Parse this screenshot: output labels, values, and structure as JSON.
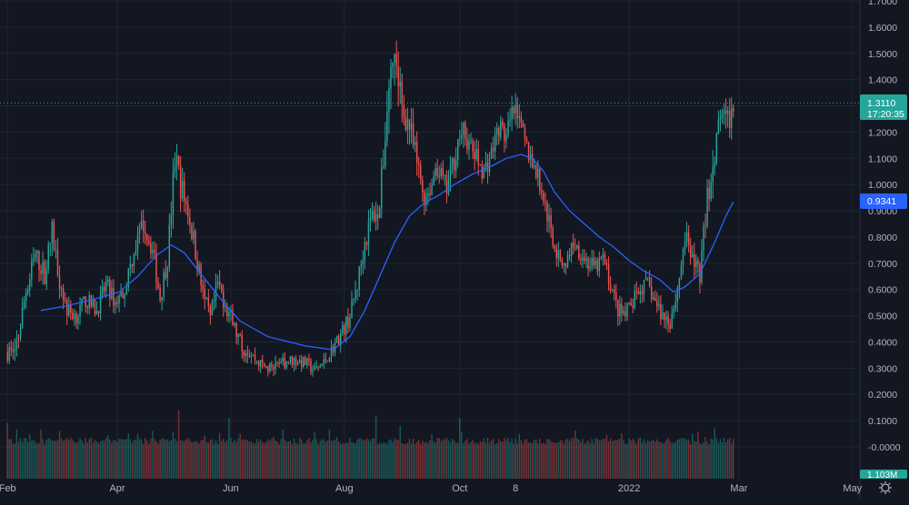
{
  "chart_data": {
    "type": "candlestick",
    "grid": true,
    "colors": {
      "background": "#131722",
      "grid": "#1f2532",
      "axis_text": "#b2b5be",
      "up": "#26a69a",
      "down": "#ef5350",
      "ma_line": "#2962ff",
      "price_label_bg": "#26a69a",
      "ma_label_bg": "#2962ff",
      "volume_label_bg": "#26a69a",
      "crosshair": "#26a69a"
    },
    "y_axis": {
      "ticks": [
        "1.7000",
        "1.6000",
        "1.5000",
        "1.4000",
        "1.3000",
        "1.2000",
        "1.1000",
        "1.0000",
        "0.9000",
        "0.8000",
        "0.7000",
        "0.6000",
        "0.5000",
        "0.4000",
        "0.3000",
        "0.2000",
        "0.1000",
        "-0.0000"
      ],
      "tick_values": [
        1.7,
        1.6,
        1.5,
        1.4,
        1.3,
        1.2,
        1.1,
        1.0,
        0.9,
        0.8,
        0.7,
        0.6,
        0.5,
        0.4,
        0.3,
        0.2,
        0.1,
        0.0
      ],
      "range": [
        0.0,
        1.7
      ]
    },
    "x_axis": {
      "ticks": [
        "Feb",
        "Apr",
        "Jun",
        "Aug",
        "Oct",
        "8",
        "2022",
        "Mar",
        "May"
      ],
      "tick_days": [
        0,
        59,
        120,
        181,
        243,
        273,
        334,
        393,
        454
      ],
      "range_days": [
        -4,
        458
      ]
    },
    "price_label": {
      "price": "1.3110",
      "countdown": "17:20:35",
      "value": 1.311
    },
    "ma_label": {
      "price": "0.9341",
      "value": 0.9341
    },
    "volume_label": {
      "text": "1.103M"
    },
    "series_anchors": [
      [
        0,
        0.36,
        0.04
      ],
      [
        5,
        0.38,
        0.05
      ],
      [
        10,
        0.6,
        0.05
      ],
      [
        15,
        0.73,
        0.05
      ],
      [
        20,
        0.66,
        0.05
      ],
      [
        24,
        0.82,
        0.06
      ],
      [
        28,
        0.64,
        0.05
      ],
      [
        32,
        0.52,
        0.04
      ],
      [
        37,
        0.5,
        0.04
      ],
      [
        42,
        0.56,
        0.04
      ],
      [
        48,
        0.52,
        0.04
      ],
      [
        53,
        0.62,
        0.04
      ],
      [
        58,
        0.55,
        0.04
      ],
      [
        63,
        0.6,
        0.04
      ],
      [
        68,
        0.75,
        0.05
      ],
      [
        73,
        0.85,
        0.05
      ],
      [
        78,
        0.75,
        0.05
      ],
      [
        82,
        0.57,
        0.05
      ],
      [
        86,
        0.72,
        0.05
      ],
      [
        90,
        1.1,
        0.08
      ],
      [
        93,
        1.0,
        0.07
      ],
      [
        97,
        0.9,
        0.06
      ],
      [
        101,
        0.75,
        0.06
      ],
      [
        105,
        0.58,
        0.05
      ],
      [
        109,
        0.48,
        0.05
      ],
      [
        113,
        0.62,
        0.05
      ],
      [
        117,
        0.55,
        0.05
      ],
      [
        122,
        0.45,
        0.04
      ],
      [
        126,
        0.38,
        0.04
      ],
      [
        130,
        0.36,
        0.03
      ],
      [
        135,
        0.32,
        0.03
      ],
      [
        140,
        0.3,
        0.03
      ],
      [
        145,
        0.3,
        0.03
      ],
      [
        150,
        0.33,
        0.03
      ],
      [
        155,
        0.33,
        0.03
      ],
      [
        160,
        0.32,
        0.03
      ],
      [
        165,
        0.29,
        0.03
      ],
      [
        170,
        0.32,
        0.03
      ],
      [
        175,
        0.38,
        0.03
      ],
      [
        180,
        0.44,
        0.04
      ],
      [
        184,
        0.5,
        0.04
      ],
      [
        188,
        0.62,
        0.05
      ],
      [
        192,
        0.78,
        0.05
      ],
      [
        196,
        0.88,
        0.06
      ],
      [
        200,
        0.92,
        0.06
      ],
      [
        205,
        1.38,
        0.1
      ],
      [
        208,
        1.5,
        0.1
      ],
      [
        212,
        1.3,
        0.08
      ],
      [
        216,
        1.22,
        0.07
      ],
      [
        220,
        1.08,
        0.06
      ],
      [
        224,
        0.95,
        0.05
      ],
      [
        228,
        1.0,
        0.05
      ],
      [
        232,
        1.05,
        0.05
      ],
      [
        236,
        0.98,
        0.05
      ],
      [
        240,
        1.1,
        0.06
      ],
      [
        244,
        1.22,
        0.06
      ],
      [
        248,
        1.15,
        0.05
      ],
      [
        252,
        1.1,
        0.05
      ],
      [
        256,
        1.05,
        0.05
      ],
      [
        260,
        1.12,
        0.05
      ],
      [
        264,
        1.22,
        0.05
      ],
      [
        268,
        1.18,
        0.05
      ],
      [
        272,
        1.28,
        0.06
      ],
      [
        276,
        1.2,
        0.05
      ],
      [
        280,
        1.12,
        0.05
      ],
      [
        284,
        1.05,
        0.05
      ],
      [
        288,
        0.95,
        0.05
      ],
      [
        292,
        0.82,
        0.05
      ],
      [
        296,
        0.72,
        0.04
      ],
      [
        300,
        0.7,
        0.04
      ],
      [
        304,
        0.78,
        0.04
      ],
      [
        308,
        0.74,
        0.04
      ],
      [
        312,
        0.7,
        0.04
      ],
      [
        316,
        0.68,
        0.04
      ],
      [
        320,
        0.72,
        0.04
      ],
      [
        324,
        0.62,
        0.04
      ],
      [
        328,
        0.52,
        0.04
      ],
      [
        332,
        0.5,
        0.04
      ],
      [
        336,
        0.55,
        0.04
      ],
      [
        340,
        0.6,
        0.04
      ],
      [
        344,
        0.62,
        0.04
      ],
      [
        348,
        0.55,
        0.04
      ],
      [
        352,
        0.5,
        0.04
      ],
      [
        356,
        0.48,
        0.04
      ],
      [
        360,
        0.6,
        0.05
      ],
      [
        364,
        0.8,
        0.05
      ],
      [
        368,
        0.72,
        0.05
      ],
      [
        372,
        0.66,
        0.05
      ],
      [
        376,
        0.95,
        0.07
      ],
      [
        380,
        1.1,
        0.08
      ],
      [
        383,
        1.28,
        0.08
      ],
      [
        386,
        1.22,
        0.07
      ],
      [
        390,
        1.3,
        0.06
      ]
    ],
    "ma_points": [
      [
        18,
        0.52
      ],
      [
        30,
        0.535
      ],
      [
        45,
        0.56
      ],
      [
        60,
        0.59
      ],
      [
        70,
        0.65
      ],
      [
        80,
        0.73
      ],
      [
        88,
        0.77
      ],
      [
        95,
        0.74
      ],
      [
        105,
        0.65
      ],
      [
        115,
        0.56
      ],
      [
        125,
        0.48
      ],
      [
        140,
        0.42
      ],
      [
        160,
        0.385
      ],
      [
        175,
        0.37
      ],
      [
        184,
        0.42
      ],
      [
        192,
        0.52
      ],
      [
        200,
        0.65
      ],
      [
        208,
        0.78
      ],
      [
        216,
        0.88
      ],
      [
        224,
        0.93
      ],
      [
        232,
        0.96
      ],
      [
        240,
        1.0
      ],
      [
        250,
        1.04
      ],
      [
        260,
        1.07
      ],
      [
        268,
        1.1
      ],
      [
        276,
        1.115
      ],
      [
        282,
        1.1
      ],
      [
        288,
        1.05
      ],
      [
        294,
        0.97
      ],
      [
        302,
        0.9
      ],
      [
        310,
        0.85
      ],
      [
        318,
        0.8
      ],
      [
        326,
        0.76
      ],
      [
        334,
        0.71
      ],
      [
        342,
        0.67
      ],
      [
        350,
        0.64
      ],
      [
        358,
        0.59
      ],
      [
        364,
        0.61
      ],
      [
        372,
        0.66
      ],
      [
        380,
        0.78
      ],
      [
        386,
        0.88
      ],
      [
        390,
        0.934
      ]
    ],
    "volume_spikes": [
      [
        0,
        0.09
      ],
      [
        92,
        0.14
      ],
      [
        119,
        0.11
      ],
      [
        198,
        0.12
      ],
      [
        211,
        0.08
      ],
      [
        243,
        0.11
      ],
      [
        275,
        0.05
      ],
      [
        368,
        0.05
      ],
      [
        380,
        0.07
      ]
    ]
  }
}
